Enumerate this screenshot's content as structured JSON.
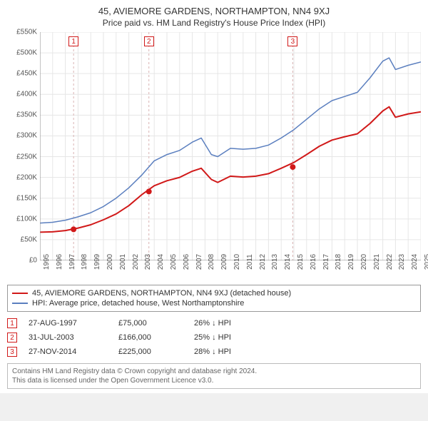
{
  "title": "45, AVIEMORE GARDENS, NORTHAMPTON, NN4 9XJ",
  "subtitle": "Price paid vs. HM Land Registry's House Price Index (HPI)",
  "chart": {
    "background_color": "#ffffff",
    "grid_color": "#e6e6e6",
    "axis_color": "#888888",
    "label_color": "#555555",
    "label_fontsize": 10,
    "x_years": [
      1995,
      1996,
      1997,
      1998,
      1999,
      2000,
      2001,
      2002,
      2003,
      2004,
      2005,
      2006,
      2007,
      2008,
      2009,
      2010,
      2011,
      2012,
      2013,
      2014,
      2015,
      2016,
      2017,
      2018,
      2019,
      2020,
      2021,
      2022,
      2023,
      2024,
      2025
    ],
    "y_ticks": [
      0,
      50000,
      100000,
      150000,
      200000,
      250000,
      300000,
      350000,
      400000,
      450000,
      500000,
      550000
    ],
    "y_tick_labels": [
      "£0",
      "£50K",
      "£100K",
      "£150K",
      "£200K",
      "£250K",
      "£300K",
      "£350K",
      "£400K",
      "£450K",
      "£500K",
      "£550K"
    ],
    "ylim": [
      0,
      550000
    ],
    "xlim": [
      1995,
      2025
    ],
    "series": [
      {
        "name": "hpi",
        "label": "HPI: Average price, detached house, West Northamptonshire",
        "color": "#5b7fbf",
        "width": 1.5,
        "points": [
          [
            1995,
            90000
          ],
          [
            1996,
            92000
          ],
          [
            1997,
            97000
          ],
          [
            1998,
            105000
          ],
          [
            1999,
            115000
          ],
          [
            2000,
            130000
          ],
          [
            2001,
            150000
          ],
          [
            2002,
            175000
          ],
          [
            2003,
            205000
          ],
          [
            2004,
            240000
          ],
          [
            2005,
            255000
          ],
          [
            2006,
            265000
          ],
          [
            2007,
            285000
          ],
          [
            2007.7,
            295000
          ],
          [
            2008.5,
            255000
          ],
          [
            2009,
            250000
          ],
          [
            2010,
            270000
          ],
          [
            2011,
            268000
          ],
          [
            2012,
            270000
          ],
          [
            2013,
            278000
          ],
          [
            2014,
            295000
          ],
          [
            2015,
            315000
          ],
          [
            2016,
            340000
          ],
          [
            2017,
            365000
          ],
          [
            2018,
            385000
          ],
          [
            2019,
            395000
          ],
          [
            2020,
            405000
          ],
          [
            2021,
            440000
          ],
          [
            2022,
            480000
          ],
          [
            2022.5,
            488000
          ],
          [
            2023,
            460000
          ],
          [
            2024,
            470000
          ],
          [
            2025,
            478000
          ]
        ]
      },
      {
        "name": "price_paid",
        "label": "45, AVIEMORE GARDENS, NORTHAMPTON, NN4 9XJ (detached house)",
        "color": "#d11919",
        "width": 2,
        "points": [
          [
            1995,
            68000
          ],
          [
            1996,
            69000
          ],
          [
            1997,
            72000
          ],
          [
            1998,
            78000
          ],
          [
            1999,
            86000
          ],
          [
            2000,
            98000
          ],
          [
            2001,
            112000
          ],
          [
            2002,
            132000
          ],
          [
            2003,
            158000
          ],
          [
            2004,
            180000
          ],
          [
            2005,
            192000
          ],
          [
            2006,
            200000
          ],
          [
            2007,
            215000
          ],
          [
            2007.7,
            222000
          ],
          [
            2008.5,
            195000
          ],
          [
            2009,
            188000
          ],
          [
            2010,
            203000
          ],
          [
            2011,
            201000
          ],
          [
            2012,
            203000
          ],
          [
            2013,
            209000
          ],
          [
            2014,
            222000
          ],
          [
            2015,
            236000
          ],
          [
            2016,
            255000
          ],
          [
            2017,
            275000
          ],
          [
            2018,
            290000
          ],
          [
            2019,
            298000
          ],
          [
            2020,
            305000
          ],
          [
            2021,
            330000
          ],
          [
            2022,
            360000
          ],
          [
            2022.5,
            370000
          ],
          [
            2023,
            345000
          ],
          [
            2024,
            353000
          ],
          [
            2025,
            358000
          ]
        ]
      }
    ],
    "sale_points": {
      "color": "#d11919",
      "radius": 4,
      "items": [
        {
          "id": "1",
          "x": 1997.65,
          "y": 75000
        },
        {
          "id": "2",
          "x": 2003.58,
          "y": 166000
        },
        {
          "id": "3",
          "x": 2014.91,
          "y": 225000
        }
      ]
    },
    "ref_lines": {
      "color": "#d9b3b3",
      "dash": "3,3",
      "width": 1
    }
  },
  "legend": {
    "rows": [
      {
        "color": "#d11919",
        "label": "45, AVIEMORE GARDENS, NORTHAMPTON, NN4 9XJ (detached house)"
      },
      {
        "color": "#5b7fbf",
        "label": "HPI: Average price, detached house, West Northamptonshire"
      }
    ]
  },
  "markers": [
    {
      "id": "1",
      "date": "27-AUG-1997",
      "price": "£75,000",
      "diff": "26% ↓ HPI"
    },
    {
      "id": "2",
      "date": "31-JUL-2003",
      "price": "£166,000",
      "diff": "25% ↓ HPI"
    },
    {
      "id": "3",
      "date": "27-NOV-2014",
      "price": "£225,000",
      "diff": "28% ↓ HPI"
    }
  ],
  "footnote": {
    "line1": "Contains HM Land Registry data © Crown copyright and database right 2024.",
    "line2": "This data is licensed under the Open Government Licence v3.0."
  }
}
